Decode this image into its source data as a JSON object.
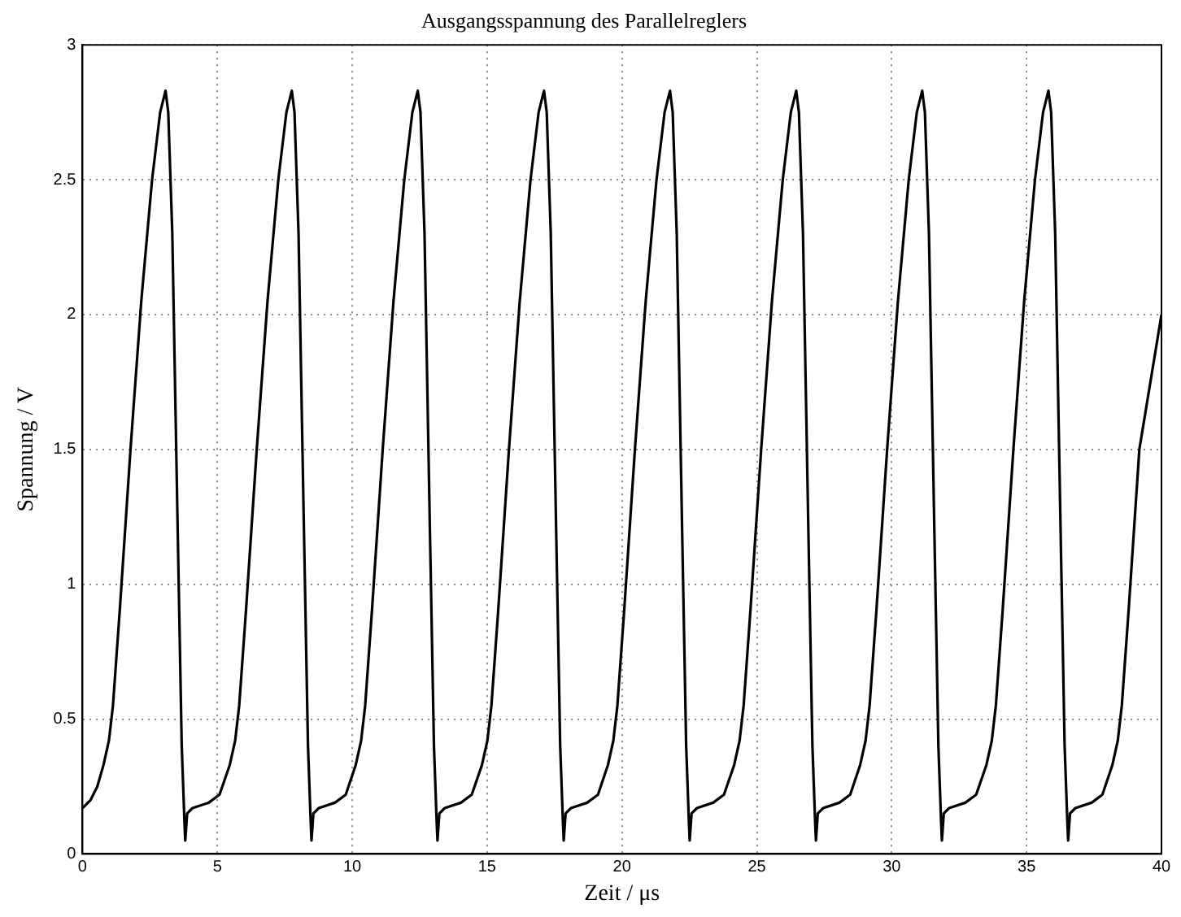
{
  "chart_data": {
    "type": "line",
    "title": "Ausgangsspannung des Parallelreglers",
    "xlabel": "Zeit / μs",
    "ylabel": "Spannung / V",
    "xlim": [
      0,
      40
    ],
    "xticks": [
      0,
      5,
      10,
      15,
      20,
      25,
      30,
      35,
      40
    ],
    "ylim": [
      0,
      3
    ],
    "yticks": [
      0,
      0.5,
      1,
      1.5,
      2,
      2.5,
      3
    ],
    "grid": true,
    "marker": "none",
    "line_style": "solid",
    "legend": false,
    "series": [
      {
        "color": "#000000",
        "x": [
          0,
          0.3,
          0.55,
          0.78,
          0.98,
          1.13,
          1.38,
          1.78,
          2.18,
          2.58,
          2.88,
          3.08,
          3.18,
          3.33,
          3.53,
          3.68,
          3.78,
          3.81,
          3.88,
          4.08,
          4.68,
          5.08,
          5.46,
          5.66,
          5.81,
          6.06,
          6.46,
          6.86,
          7.26,
          7.56,
          7.76,
          7.86,
          8.01,
          8.21,
          8.36,
          8.46,
          8.49,
          8.56,
          8.76,
          9.36,
          9.76,
          10.13,
          10.33,
          10.48,
          10.73,
          11.13,
          11.53,
          11.93,
          12.23,
          12.43,
          12.53,
          12.68,
          12.88,
          13.03,
          13.13,
          13.16,
          13.23,
          13.43,
          14.03,
          14.43,
          14.81,
          15.01,
          15.16,
          15.41,
          15.81,
          16.21,
          16.61,
          16.91,
          17.11,
          17.21,
          17.36,
          17.56,
          17.71,
          17.81,
          17.84,
          17.91,
          18.11,
          18.71,
          19.11,
          19.48,
          19.68,
          19.83,
          20.08,
          20.48,
          20.88,
          21.28,
          21.58,
          21.78,
          21.88,
          22.03,
          22.23,
          22.38,
          22.48,
          22.51,
          22.58,
          22.78,
          23.38,
          23.78,
          24.16,
          24.36,
          24.51,
          24.76,
          25.16,
          25.56,
          25.96,
          26.26,
          26.46,
          26.56,
          26.71,
          26.91,
          27.06,
          27.16,
          27.19,
          27.26,
          27.46,
          28.06,
          28.46,
          28.83,
          29.03,
          29.18,
          29.43,
          29.83,
          30.23,
          30.63,
          30.93,
          31.13,
          31.23,
          31.38,
          31.58,
          31.73,
          31.83,
          31.86,
          31.93,
          32.13,
          32.73,
          33.13,
          33.51,
          33.71,
          33.86,
          34.11,
          34.51,
          34.91,
          35.31,
          35.61,
          35.81,
          35.91,
          36.06,
          36.26,
          36.41,
          36.51,
          36.54,
          36.61,
          36.81,
          37.41,
          37.81,
          38.18,
          38.38,
          38.53,
          38.78,
          39.18,
          40
        ],
        "values": [
          0.17,
          0.2,
          0.25,
          0.33,
          0.42,
          0.55,
          0.9,
          1.5,
          2.05,
          2.5,
          2.75,
          2.83,
          2.75,
          2.3,
          1.2,
          0.4,
          0.12,
          0.05,
          0.15,
          0.17,
          0.19,
          0.22,
          0.33,
          0.42,
          0.55,
          0.9,
          1.5,
          2.05,
          2.5,
          2.75,
          2.83,
          2.75,
          2.3,
          1.2,
          0.4,
          0.12,
          0.05,
          0.15,
          0.17,
          0.19,
          0.22,
          0.33,
          0.42,
          0.55,
          0.9,
          1.5,
          2.05,
          2.5,
          2.75,
          2.83,
          2.75,
          2.3,
          1.2,
          0.4,
          0.12,
          0.05,
          0.15,
          0.17,
          0.19,
          0.22,
          0.33,
          0.42,
          0.55,
          0.9,
          1.5,
          2.05,
          2.5,
          2.75,
          2.83,
          2.75,
          2.3,
          1.2,
          0.4,
          0.12,
          0.05,
          0.15,
          0.17,
          0.19,
          0.22,
          0.33,
          0.42,
          0.55,
          0.9,
          1.5,
          2.05,
          2.5,
          2.75,
          2.83,
          2.75,
          2.3,
          1.2,
          0.4,
          0.12,
          0.05,
          0.15,
          0.17,
          0.19,
          0.22,
          0.33,
          0.42,
          0.55,
          0.9,
          1.5,
          2.05,
          2.5,
          2.75,
          2.83,
          2.75,
          2.3,
          1.2,
          0.4,
          0.12,
          0.05,
          0.15,
          0.17,
          0.19,
          0.22,
          0.33,
          0.42,
          0.55,
          0.9,
          1.5,
          2.05,
          2.5,
          2.75,
          2.83,
          2.75,
          2.3,
          1.2,
          0.4,
          0.12,
          0.05,
          0.15,
          0.17,
          0.19,
          0.22,
          0.33,
          0.42,
          0.55,
          0.9,
          1.5,
          2.05,
          2.5,
          2.75,
          2.83,
          2.75,
          2.3,
          1.2,
          0.4,
          0.12,
          0.05,
          0.15,
          0.17,
          0.19,
          0.22,
          0.33,
          0.42,
          0.55,
          0.9,
          1.5,
          2.0
        ]
      }
    ]
  }
}
